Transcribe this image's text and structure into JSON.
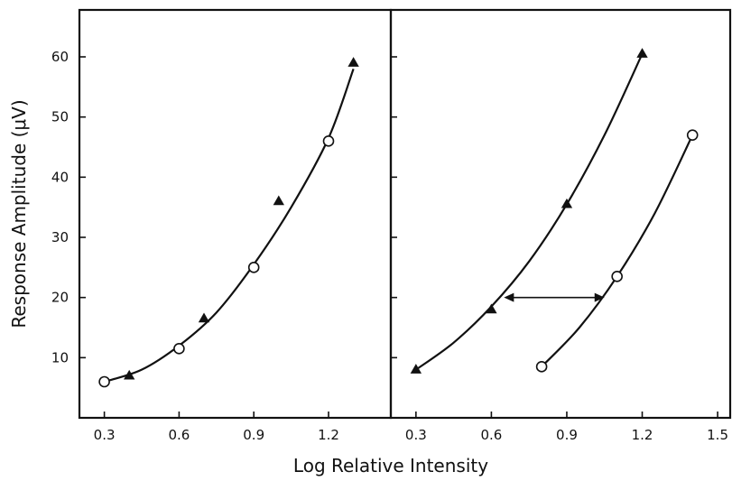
{
  "chart_data": [
    {
      "type": "scatter",
      "xlabel": "Log Relative Intensity",
      "ylabel": "Response Amplitude (μV)",
      "xlim": [
        0.2,
        1.45
      ],
      "ylim": [
        0,
        67.8
      ],
      "x_ticks": [
        "0.3",
        "0.6",
        "0.9",
        "1.2"
      ],
      "y_ticks": [
        "10",
        "20",
        "30",
        "40",
        "50",
        "60"
      ],
      "series": [
        {
          "marker": "filled-triangle",
          "x": [
            0.4,
            0.7,
            1.0,
            1.3
          ],
          "y": [
            7,
            16.5,
            36,
            59
          ]
        },
        {
          "marker": "open-circle",
          "x": [
            0.3,
            0.6,
            0.9,
            1.2
          ],
          "y": [
            6,
            11.5,
            25,
            46
          ]
        }
      ],
      "fit_curve": {
        "x": [
          0.3,
          0.45,
          0.6,
          0.75,
          0.9,
          1.05,
          1.2,
          1.3
        ],
        "y": [
          6,
          8,
          12,
          17.5,
          25.5,
          35,
          46.5,
          58
        ]
      }
    },
    {
      "type": "scatter",
      "xlabel": "Log Relative Intensity",
      "ylabel": "",
      "xlim": [
        0.2,
        1.55
      ],
      "ylim": [
        0,
        67.8
      ],
      "x_ticks": [
        "0.3",
        "0.6",
        "0.9",
        "1.2",
        "1.5"
      ],
      "y_ticks": [],
      "series": [
        {
          "marker": "filled-triangle",
          "x": [
            0.3,
            0.6,
            0.9,
            1.2
          ],
          "y": [
            8,
            18,
            35.5,
            60.5
          ]
        },
        {
          "marker": "open-circle",
          "x": [
            0.8,
            1.1,
            1.4
          ],
          "y": [
            8.5,
            23.5,
            47
          ]
        }
      ],
      "fit_curves": [
        {
          "x": [
            0.3,
            0.45,
            0.6,
            0.75,
            0.9,
            1.05,
            1.2
          ],
          "y": [
            8,
            12.5,
            18.5,
            26,
            35.5,
            47,
            60.5
          ]
        },
        {
          "x": [
            0.8,
            0.95,
            1.1,
            1.25,
            1.4
          ],
          "y": [
            8.5,
            15,
            23.5,
            34,
            47
          ]
        }
      ],
      "arrow": {
        "x_from": 0.65,
        "x_to": 1.05,
        "y": 20,
        "direction": "both"
      }
    }
  ]
}
